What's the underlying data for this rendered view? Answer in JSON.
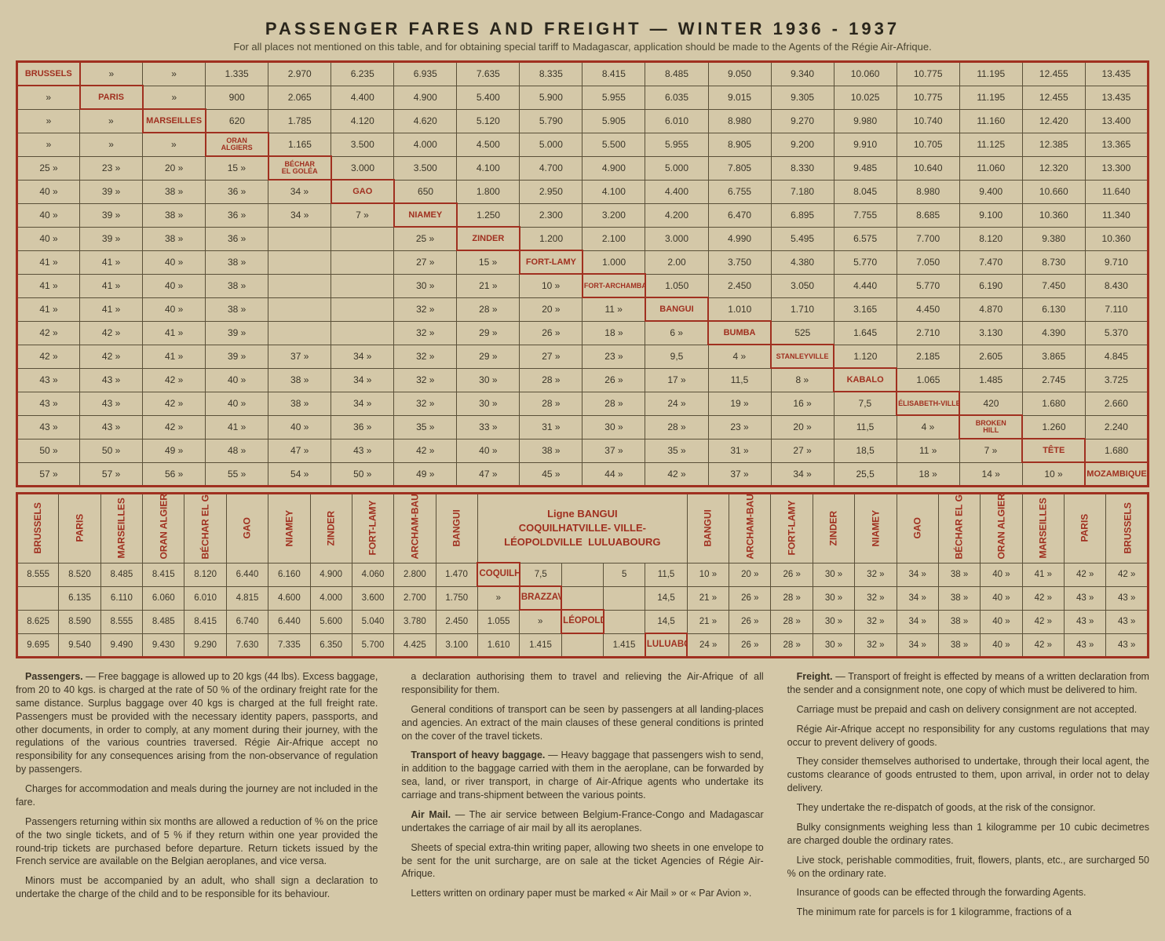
{
  "title": "PASSENGER FARES AND FREIGHT — WINTER 1936 - 1937",
  "subtitle": "For all places not mentioned on this table, and for obtaining special tariff to Madagascar, application should be made to the Agents of the Régie Air-Afrique.",
  "cities_diag": [
    "BRUSSELS",
    "PARIS",
    "MARSEILLES",
    "ORAN ALGIERS",
    "BÉCHAR EL GOLÉA",
    "GAO",
    "NIAMEY",
    "ZINDER",
    "FORT-LAMY",
    "FORT-ARCHAMBAULT",
    "BANGUI",
    "BUMBA",
    "STANLEYVILLE",
    "KABALO",
    "ÉLISABETH-VILLE",
    "BROKEN HILL",
    "TÊTE",
    "MOZAMBIQUE"
  ],
  "main_rows": [
    [
      "BRUSSELS",
      "»",
      "»",
      "1.335",
      "2.970",
      "6.235",
      "6.935",
      "7.635",
      "8.335",
      "8.415",
      "8.485",
      "9.050",
      "9.340",
      "10.060",
      "10.775",
      "11.195",
      "12.455",
      "13.435"
    ],
    [
      "»",
      "PARIS",
      "»",
      "900",
      "2.065",
      "4.400",
      "4.900",
      "5.400",
      "5.900",
      "5.955",
      "6.035",
      "9.015",
      "9.305",
      "10.025",
      "10.775",
      "11.195",
      "12.455",
      "13.435"
    ],
    [
      "»",
      "»",
      "MARSEILLES",
      "620",
      "1.785",
      "4.120",
      "4.620",
      "5.120",
      "5.790",
      "5.905",
      "6.010",
      "8.980",
      "9.270",
      "9.980",
      "10.740",
      "11.160",
      "12.420",
      "13.400"
    ],
    [
      "»",
      "»",
      "»",
      "ORAN ALGIERS",
      "1.165",
      "3.500",
      "4.000",
      "4.500",
      "5.000",
      "5.500",
      "5.955",
      "8.905",
      "9.200",
      "9.910",
      "10.705",
      "11.125",
      "12.385",
      "13.365"
    ],
    [
      "25 »",
      "23 »",
      "20 »",
      "15 »",
      "BÉCHAR EL GOLÉA",
      "3.000",
      "3.500",
      "4.100",
      "4.700",
      "4.900",
      "5.000",
      "7.805",
      "8.330",
      "9.485",
      "10.640",
      "11.060",
      "12.320",
      "13.300"
    ],
    [
      "40 »",
      "39 »",
      "38 »",
      "36 »",
      "34 »",
      "GAO",
      "650",
      "1.800",
      "2.950",
      "4.100",
      "4.400",
      "6.755",
      "7.180",
      "8.045",
      "8.980",
      "9.400",
      "10.660",
      "11.640"
    ],
    [
      "40 »",
      "39 »",
      "38 »",
      "36 »",
      "34 »",
      "7 »",
      "NIAMEY",
      "1.250",
      "2.300",
      "3.200",
      "4.200",
      "6.470",
      "6.895",
      "7.755",
      "8.685",
      "9.100",
      "10.360",
      "11.340"
    ],
    [
      "40 »",
      "39 »",
      "38 »",
      "36 »",
      "",
      "",
      "25 »",
      "ZINDER",
      "1.200",
      "2.100",
      "3.000",
      "4.990",
      "5.495",
      "6.575",
      "7.700",
      "8.120",
      "9.380",
      "10.360"
    ],
    [
      "41 »",
      "41 »",
      "40 »",
      "38 »",
      "",
      "",
      "27 »",
      "15 »",
      "FORT-LAMY",
      "1.000",
      "2.00",
      "3.750",
      "4.380",
      "5.770",
      "7.050",
      "7.470",
      "8.730",
      "9.710"
    ],
    [
      "41 »",
      "41 »",
      "40 »",
      "38 »",
      "",
      "",
      "30 »",
      "21 »",
      "10 »",
      "FORT-ARCHAMBAULT",
      "1.050",
      "2.450",
      "3.050",
      "4.440",
      "5.770",
      "6.190",
      "7.450",
      "8.430"
    ],
    [
      "41 »",
      "41 »",
      "40 »",
      "38 »",
      "",
      "",
      "32 »",
      "28 »",
      "20 »",
      "11 »",
      "BANGUI",
      "1.010",
      "1.710",
      "3.165",
      "4.450",
      "4.870",
      "6.130",
      "7.110"
    ],
    [
      "42 »",
      "42 »",
      "41 »",
      "39 »",
      "",
      "",
      "32 »",
      "29 »",
      "26 »",
      "18 »",
      "6 »",
      "BUMBA",
      "525",
      "1.645",
      "2.710",
      "3.130",
      "4.390",
      "5.370"
    ],
    [
      "42 »",
      "42 »",
      "41 »",
      "39 »",
      "37 »",
      "34 »",
      "32 »",
      "29 »",
      "27 »",
      "23 »",
      "9,5",
      "4 »",
      "STANLEYVILLE",
      "1.120",
      "2.185",
      "2.605",
      "3.865",
      "4.845"
    ],
    [
      "43 »",
      "43 »",
      "42 »",
      "40 »",
      "38 »",
      "34 »",
      "32 »",
      "30 »",
      "28 »",
      "26 »",
      "17 »",
      "11,5",
      "8 »",
      "KABALO",
      "1.065",
      "1.485",
      "2.745",
      "3.725"
    ],
    [
      "43 »",
      "43 »",
      "42 »",
      "40 »",
      "38 »",
      "34 »",
      "32 »",
      "30 »",
      "28 »",
      "28 »",
      "24 »",
      "19 »",
      "16 »",
      "7,5",
      "ÉLISABETH-VILLE",
      "420",
      "1.680",
      "2.660"
    ],
    [
      "43 »",
      "43 »",
      "42 »",
      "41 »",
      "40 »",
      "36 »",
      "35 »",
      "33 »",
      "31 »",
      "30 »",
      "28 »",
      "23 »",
      "20 »",
      "11,5",
      "4 »",
      "BROKEN HILL",
      "1.260",
      "2.240"
    ],
    [
      "50 »",
      "50 »",
      "49 »",
      "48 »",
      "47 »",
      "43 »",
      "42 »",
      "40 »",
      "38 »",
      "37 »",
      "35 »",
      "31 »",
      "27 »",
      "18,5",
      "11 »",
      "7 »",
      "TÊTE",
      "1.680"
    ],
    [
      "57 »",
      "57 »",
      "56 »",
      "55 »",
      "54 »",
      "50 »",
      "49 »",
      "47 »",
      "45 »",
      "44 »",
      "42 »",
      "37 »",
      "34 »",
      "25,5",
      "18 »",
      "14 »",
      "10 »",
      "MOZAMBIQUE"
    ]
  ],
  "bottom_labels_left": [
    "BRUSSELS",
    "PARIS",
    "MARSEILLES",
    "ORAN ALGIERS",
    "BÉCHAR EL GOLÉA",
    "GAO",
    "NIAMEY",
    "ZINDER",
    "FORT-LAMY",
    "ARCHAM-BAULT",
    "BANGUI"
  ],
  "bottom_center_title": "Ligne BANGUI COQUILHATVILLE- VILLE- LÉOPOLDVILLE LULUABOURG",
  "bottom_labels_right": [
    "BANGUI",
    "ARCHAM-BAULT",
    "FORT-LAMY",
    "ZINDER",
    "NIAMEY",
    "GAO",
    "BÉCHAR EL GOLÉA",
    "ORAN ALGIERS",
    "MARSEILLES",
    "PARIS",
    "BRUSSELS"
  ],
  "bottom_rows": [
    [
      "8.555",
      "8.520",
      "8.485",
      "8.415",
      "8.120",
      "6.440",
      "6.160",
      "4.900",
      "4.060",
      "2.800",
      "1.470",
      "COQUILHAT-VILLE",
      "7,5",
      "",
      "5",
      "11,5",
      "10 »",
      "20 »",
      "26 »",
      "30 »",
      "32 »",
      "34 »",
      "38 »",
      "40 »",
      "41 »",
      "42 »",
      "42 »"
    ],
    [
      "",
      "6.135",
      "6.110",
      "6.060",
      "6.010",
      "4.815",
      "4.600",
      "4.000",
      "3.600",
      "2.700",
      "1.750",
      "»",
      "BRAZZAVILLE",
      "",
      "",
      "14,5",
      "21 »",
      "26 »",
      "28 »",
      "30 »",
      "32 »",
      "34 »",
      "38 »",
      "40 »",
      "42 »",
      "43 »",
      "43 »"
    ],
    [
      "8.625",
      "8.590",
      "8.555",
      "8.485",
      "8.415",
      "6.740",
      "6.440",
      "5.600",
      "5.040",
      "3.780",
      "2.450",
      "1.055",
      "»",
      "LÉOPOLDVILLE",
      "",
      "14,5",
      "21 »",
      "26 »",
      "28 »",
      "30 »",
      "32 »",
      "34 »",
      "38 »",
      "40 »",
      "42 »",
      "43 »",
      "43 »"
    ],
    [
      "9.695",
      "9.540",
      "9.490",
      "9.430",
      "9.290",
      "7.630",
      "7.335",
      "6.350",
      "5.700",
      "4.425",
      "3.100",
      "1.610",
      "1.415",
      "",
      "1.415",
      "LULUABOURG",
      "24 »",
      "26 »",
      "28 »",
      "30 »",
      "32 »",
      "34 »",
      "38 »",
      "40 »",
      "42 »",
      "43 »",
      "43 »"
    ]
  ],
  "text_col1": [
    {
      "b": "Passengers.",
      "t": " — Free baggage is allowed up to 20 kgs (44 lbs). Excess baggage, from 20 to 40 kgs. is charged at the rate of 50 % of the ordinary freight rate for the same distance. Surplus baggage over 40 kgs is charged at the full freight rate. Passengers must be provided with the necessary identity papers, passports, and other documents, in order to comply, at any moment during their journey, with the regulations of the various countries traversed. Régie Air-Afrique accept no responsibility for any consequences arising from the non-observance of regulation by passengers."
    },
    {
      "t": "Charges for accommodation and meals during the journey are not included in the fare."
    },
    {
      "t": "Passengers returning within six months are allowed a reduction of % on the price of the two single tickets, and of 5 % if they return within one year provided the round-trip tickets are purchased before departure. Return tickets issued by the French service are available on the Belgian aeroplanes, and vice versa."
    },
    {
      "t": "Minors must be accompanied by an adult, who shall sign a declaration to undertake the charge of the child and to be responsible for its behaviour."
    }
  ],
  "text_col2": [
    {
      "t": "a declaration authorising them to travel and relieving the Air-Afrique of all responsibility for them."
    },
    {
      "t": "General conditions of transport can be seen by passengers at all landing-places and agencies. An extract of the main clauses of these general conditions is printed on the cover of the travel tickets."
    },
    {
      "b": "Transport of heavy baggage.",
      "t": " — Heavy baggage that passengers wish to send, in addition to the baggage carried with them in the aeroplane, can be forwarded by sea, land, or river transport, in charge of Air-Afrique agents who undertake its carriage and trans-shipment between the various points."
    },
    {
      "b": "Air Mail.",
      "t": " — The air service between Belgium-France-Congo and Madagascar undertakes the carriage of air mail by all its aeroplanes."
    },
    {
      "t": "Sheets of special extra-thin writing paper, allowing two sheets in one envelope to be sent for the unit surcharge, are on sale at the ticket Agencies of Régie Air-Afrique."
    },
    {
      "t": "Letters written on ordinary paper must be marked « Air Mail » or « Par Avion »."
    }
  ],
  "text_col3": [
    {
      "b": "Freight.",
      "t": " — Transport of freight is effected by means of a written declaration from the sender and a consignment note, one copy of which must be delivered to him."
    },
    {
      "t": "Carriage must be prepaid and cash on delivery consignment are not accepted."
    },
    {
      "t": "Régie Air-Afrique accept no responsibility for any customs regulations that may occur to prevent delivery of goods."
    },
    {
      "t": "They consider themselves authorised to undertake, through their local agent, the customs clearance of goods entrusted to them, upon arrival, in order not to delay delivery."
    },
    {
      "t": "They undertake the re-dispatch of goods, at the risk of the consignor."
    },
    {
      "t": "Bulky consignments weighing less than 1 kilogramme per 10 cubic decimetres are charged double the ordinary rates."
    },
    {
      "t": "Live stock, perishable commodities, fruit, flowers, plants, etc., are surcharged 50 % on the ordinary rate."
    },
    {
      "t": "Insurance of goods can be effected through the forwarding Agents."
    },
    {
      "t": "The minimum rate for parcels is for 1 kilogramme, fractions of a"
    }
  ]
}
